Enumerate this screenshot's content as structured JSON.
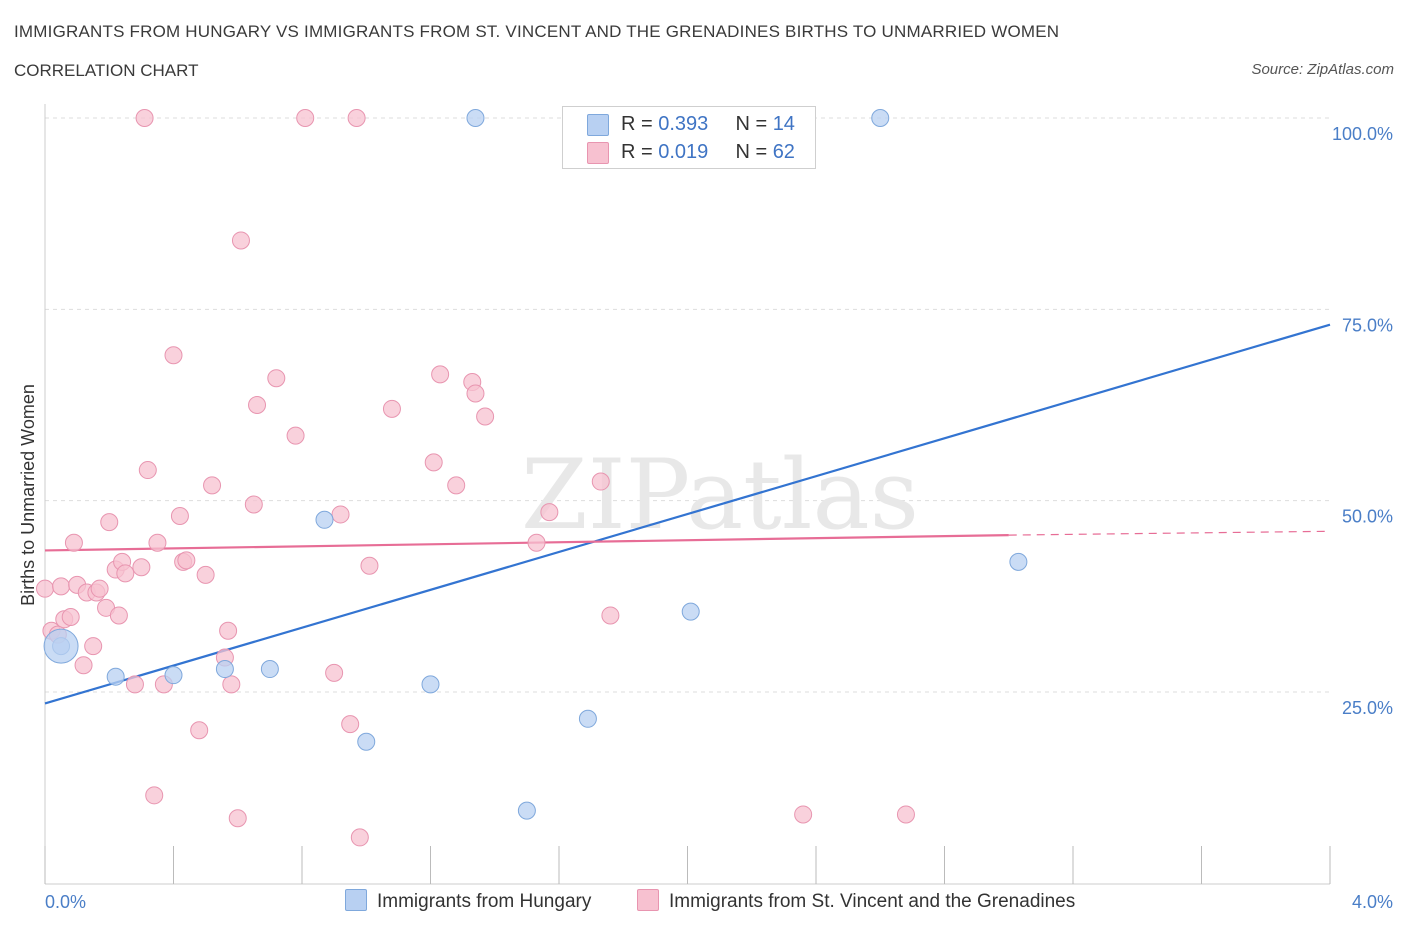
{
  "header": {
    "title": "IMMIGRANTS FROM HUNGARY VS IMMIGRANTS FROM ST. VINCENT AND THE GRENADINES BIRTHS TO UNMARRIED WOMEN",
    "subtitle": "CORRELATION CHART",
    "source": "Source: ZipAtlas.com"
  },
  "watermark": "ZIPatlas",
  "legend": {
    "rows": [
      {
        "r_label": "R = ",
        "r_value": "0.393",
        "n_label": "N = ",
        "n_value": "14"
      },
      {
        "r_label": "R = ",
        "r_value": "0.019",
        "n_label": "N = ",
        "n_value": "62"
      }
    ]
  },
  "colors": {
    "blue_fill": "#b8d0f2",
    "blue_stroke": "#7fa8dc",
    "blue_line": "#3374d1",
    "pink_fill": "#f7c1d0",
    "pink_stroke": "#e895b0",
    "pink_line": "#e76d96",
    "tick_text": "#4a7ec7",
    "grid": "#dddddd"
  },
  "chart_data": {
    "type": "scatter",
    "xlabel": "",
    "ylabel": "Births to Unmarried Women",
    "xlim": [
      0.0,
      4.0
    ],
    "ylim": [
      0.0,
      100.0
    ],
    "x_tick_labels": [
      "0.0%",
      "4.0%"
    ],
    "y_tick_labels": [
      "100.0%",
      "75.0%",
      "50.0%",
      "25.0%"
    ],
    "y_ticks": [
      100,
      75,
      50,
      25
    ],
    "grid": true,
    "legend_position": "top-center",
    "series": [
      {
        "name": "Immigrants from Hungary",
        "color": "#b8d0f2",
        "points": [
          [
            0.05,
            31.0
          ],
          [
            0.22,
            27.0
          ],
          [
            0.4,
            27.2
          ],
          [
            0.56,
            28.0
          ],
          [
            0.7,
            28.0
          ],
          [
            0.87,
            47.5
          ],
          [
            1.0,
            18.5
          ],
          [
            1.2,
            26.0
          ],
          [
            1.34,
            100.0
          ],
          [
            1.5,
            9.5
          ],
          [
            1.69,
            21.5
          ],
          [
            2.01,
            35.5
          ],
          [
            2.6,
            100.0
          ],
          [
            3.03,
            42.0
          ]
        ],
        "trend": {
          "x": [
            0.0,
            4.0
          ],
          "y": [
            23.5,
            73.0
          ]
        }
      },
      {
        "name": "Immigrants from St. Vincent and the Grenadines",
        "color": "#f7c1d0",
        "points": [
          [
            0.0,
            38.5
          ],
          [
            0.02,
            33.0
          ],
          [
            0.04,
            32.5
          ],
          [
            0.05,
            38.8
          ],
          [
            0.06,
            34.5
          ],
          [
            0.08,
            34.8
          ],
          [
            0.09,
            44.5
          ],
          [
            0.1,
            39.0
          ],
          [
            0.12,
            28.5
          ],
          [
            0.13,
            38.0
          ],
          [
            0.15,
            31.0
          ],
          [
            0.16,
            38.0
          ],
          [
            0.17,
            38.5
          ],
          [
            0.19,
            36.0
          ],
          [
            0.2,
            47.2
          ],
          [
            0.22,
            41.0
          ],
          [
            0.23,
            35.0
          ],
          [
            0.24,
            42.0
          ],
          [
            0.25,
            40.5
          ],
          [
            0.28,
            26.0
          ],
          [
            0.3,
            41.3
          ],
          [
            0.32,
            54.0
          ],
          [
            0.34,
            11.5
          ],
          [
            0.35,
            44.5
          ],
          [
            0.37,
            26.0
          ],
          [
            0.4,
            69.0
          ],
          [
            0.42,
            48.0
          ],
          [
            0.43,
            42.0
          ],
          [
            0.44,
            42.2
          ],
          [
            0.48,
            20.0
          ],
          [
            0.5,
            40.3
          ],
          [
            0.52,
            52.0
          ],
          [
            0.56,
            29.5
          ],
          [
            0.57,
            33.0
          ],
          [
            0.58,
            26.0
          ],
          [
            0.6,
            8.5
          ],
          [
            0.61,
            84.0
          ],
          [
            0.65,
            49.5
          ],
          [
            0.66,
            62.5
          ],
          [
            0.72,
            66.0
          ],
          [
            0.78,
            58.5
          ],
          [
            0.81,
            100.0
          ],
          [
            0.9,
            27.5
          ],
          [
            0.92,
            48.2
          ],
          [
            0.95,
            20.8
          ],
          [
            0.97,
            100.0
          ],
          [
            0.98,
            6.0
          ],
          [
            1.01,
            41.5
          ],
          [
            1.08,
            62.0
          ],
          [
            1.21,
            55.0
          ],
          [
            1.23,
            66.5
          ],
          [
            1.28,
            52.0
          ],
          [
            1.33,
            65.5
          ],
          [
            1.34,
            64.0
          ],
          [
            1.37,
            61.0
          ],
          [
            1.53,
            44.5
          ],
          [
            1.57,
            48.5
          ],
          [
            1.73,
            52.5
          ],
          [
            1.76,
            35.0
          ],
          [
            2.36,
            9.0
          ],
          [
            2.68,
            9.0
          ],
          [
            0.31,
            100.0
          ]
        ],
        "trend": {
          "x": [
            0.0,
            3.0
          ],
          "y": [
            43.5,
            45.5
          ]
        },
        "trend_dashed": {
          "x": [
            3.0,
            4.0
          ],
          "y": [
            45.5,
            46.0
          ]
        }
      }
    ],
    "highlight_point": {
      "series": 0,
      "x": 0.05,
      "y": 31.0
    }
  },
  "bottom_legend": {
    "hungary": "Immigrants from Hungary",
    "stvincent": "Immigrants from St. Vincent and the Grenadines"
  }
}
